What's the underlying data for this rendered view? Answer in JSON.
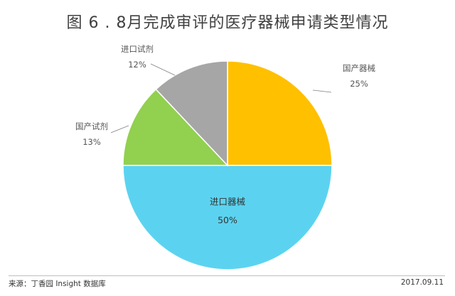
{
  "header": {
    "title": "图 6 . 8月完成审评的医疗器械申请类型情况"
  },
  "footer": {
    "source": "来源：丁香园 Insight 数据库",
    "date": "2017.09.11"
  },
  "chart_data": {
    "type": "pie",
    "title": "图 6 . 8月完成审评的医疗器械申请类型情况",
    "start_direction": "top",
    "slices": [
      {
        "label": "国产器械",
        "value": 25,
        "value_label": "25%",
        "color": "#FFC000"
      },
      {
        "label": "进口器械",
        "value": 50,
        "value_label": "50%",
        "color": "#5BD3F0"
      },
      {
        "label": "国产试剂",
        "value": 13,
        "value_label": "13%",
        "color": "#92D050"
      },
      {
        "label": "进口试剂",
        "value": 12,
        "value_label": "12%",
        "color": "#A6A6A6"
      }
    ]
  }
}
